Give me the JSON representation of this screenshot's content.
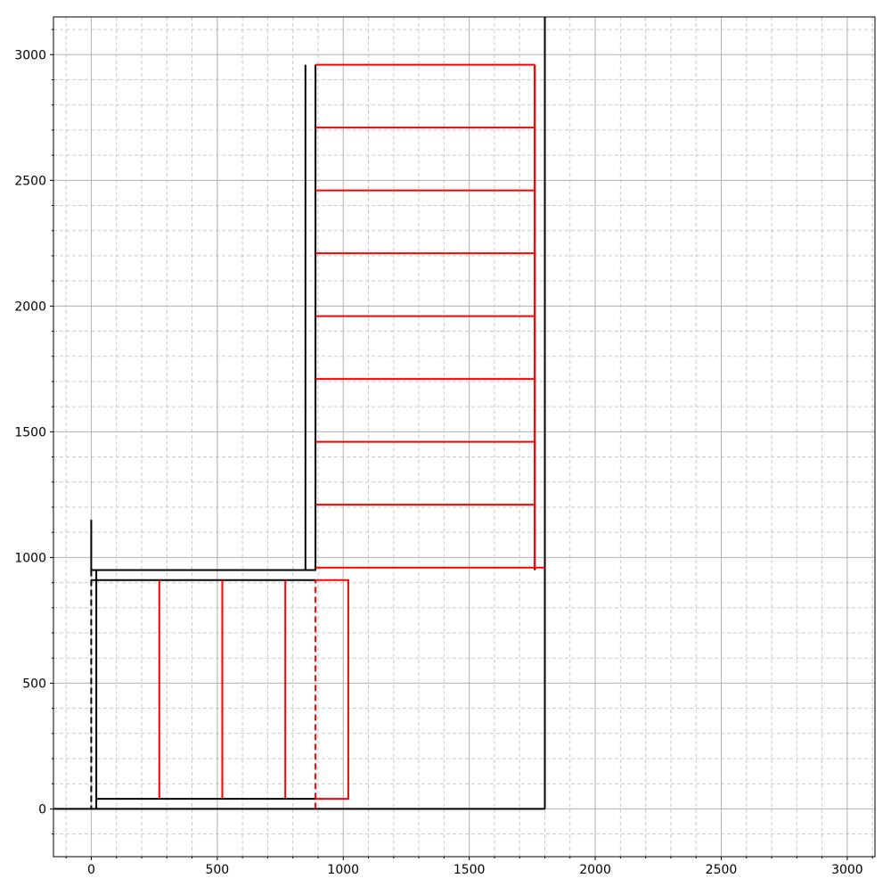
{
  "chart_data": {
    "type": "line",
    "title": "",
    "xlabel": "",
    "ylabel": "",
    "xlim": [
      -150,
      3110
    ],
    "ylim": [
      -190,
      3150
    ],
    "x_ticks": [
      0,
      500,
      1000,
      1500,
      2000,
      2500,
      3000
    ],
    "y_ticks": [
      0,
      500,
      1000,
      1500,
      2000,
      2500,
      3000
    ],
    "x_tick_labels": [
      "0",
      "500",
      "1000",
      "1500",
      "2000",
      "2500",
      "3000"
    ],
    "y_tick_labels": [
      "0",
      "500",
      "1000",
      "1500",
      "2000",
      "2500",
      "3000"
    ],
    "minor_step": 100,
    "grid": true,
    "colors": {
      "black": "#000000",
      "red": "#ff0000",
      "major_grid": "#b0b0b0",
      "minor_grid": "#c8c8c8"
    },
    "segments": [
      {
        "id": "outline-base",
        "color": "black",
        "dash": false,
        "points": [
          [
            -150,
            0
          ],
          [
            1800,
            0
          ]
        ]
      },
      {
        "id": "outline-right",
        "color": "black",
        "dash": false,
        "points": [
          [
            1800,
            0
          ],
          [
            1800,
            3150
          ]
        ]
      },
      {
        "id": "left-post",
        "color": "black",
        "dash": false,
        "points": [
          [
            0,
            1150
          ],
          [
            0,
            950
          ]
        ]
      },
      {
        "id": "left-dashed",
        "color": "black",
        "dash": true,
        "points": [
          [
            0,
            950
          ],
          [
            0,
            0
          ]
        ]
      },
      {
        "id": "inner-left-wall",
        "color": "black",
        "dash": false,
        "points": [
          [
            20,
            0
          ],
          [
            20,
            950
          ]
        ]
      },
      {
        "id": "upper-wall",
        "color": "black",
        "dash": false,
        "points": [
          [
            0,
            950
          ],
          [
            890,
            950
          ],
          [
            890,
            2960
          ]
        ]
      },
      {
        "id": "post-850",
        "color": "black",
        "dash": false,
        "points": [
          [
            850,
            950
          ],
          [
            850,
            2960
          ]
        ]
      },
      {
        "id": "lower-top",
        "color": "black",
        "dash": false,
        "points": [
          [
            0,
            910
          ],
          [
            890,
            910
          ]
        ]
      },
      {
        "id": "lower-bottom",
        "color": "black",
        "dash": false,
        "points": [
          [
            20,
            40
          ],
          [
            890,
            40
          ]
        ]
      },
      {
        "id": "post-1760",
        "color": "black",
        "dash": false,
        "points": [
          [
            1760,
            950
          ],
          [
            1760,
            2960
          ]
        ]
      },
      {
        "id": "red-bottom-box",
        "color": "red",
        "dash": false,
        "points": [
          [
            890,
            40
          ],
          [
            1020,
            40
          ],
          [
            1020,
            910
          ],
          [
            890,
            910
          ]
        ]
      },
      {
        "id": "red-dashed",
        "color": "red",
        "dash": true,
        "points": [
          [
            890,
            0
          ],
          [
            890,
            910
          ]
        ]
      },
      {
        "id": "red-v-270",
        "color": "red",
        "dash": false,
        "points": [
          [
            270,
            40
          ],
          [
            270,
            910
          ]
        ]
      },
      {
        "id": "red-v-520",
        "color": "red",
        "dash": false,
        "points": [
          [
            520,
            40
          ],
          [
            520,
            910
          ]
        ]
      },
      {
        "id": "red-v-770",
        "color": "red",
        "dash": false,
        "points": [
          [
            770,
            40
          ],
          [
            770,
            910
          ]
        ]
      },
      {
        "id": "red-h-960",
        "color": "red",
        "dash": false,
        "points": [
          [
            890,
            960
          ],
          [
            1800,
            960
          ]
        ]
      },
      {
        "id": "red-h-1210",
        "color": "red",
        "dash": false,
        "points": [
          [
            890,
            1210
          ],
          [
            1760,
            1210
          ]
        ]
      },
      {
        "id": "red-h-1460",
        "color": "red",
        "dash": false,
        "points": [
          [
            890,
            1460
          ],
          [
            1760,
            1460
          ]
        ]
      },
      {
        "id": "red-h-1710",
        "color": "red",
        "dash": false,
        "points": [
          [
            890,
            1710
          ],
          [
            1760,
            1710
          ]
        ]
      },
      {
        "id": "red-h-1960",
        "color": "red",
        "dash": false,
        "points": [
          [
            890,
            1960
          ],
          [
            1760,
            1960
          ]
        ]
      },
      {
        "id": "red-h-2210",
        "color": "red",
        "dash": false,
        "points": [
          [
            890,
            2210
          ],
          [
            1760,
            2210
          ]
        ]
      },
      {
        "id": "red-h-2460",
        "color": "red",
        "dash": false,
        "points": [
          [
            890,
            2460
          ],
          [
            1760,
            2460
          ]
        ]
      },
      {
        "id": "red-h-2710",
        "color": "red",
        "dash": false,
        "points": [
          [
            890,
            2710
          ],
          [
            1760,
            2710
          ]
        ]
      },
      {
        "id": "red-h-2960",
        "color": "red",
        "dash": false,
        "points": [
          [
            890,
            2960
          ],
          [
            1760,
            2960
          ]
        ]
      },
      {
        "id": "red-right-post",
        "color": "red",
        "dash": false,
        "points": [
          [
            1760,
            960
          ],
          [
            1760,
            2960
          ]
        ]
      }
    ]
  }
}
